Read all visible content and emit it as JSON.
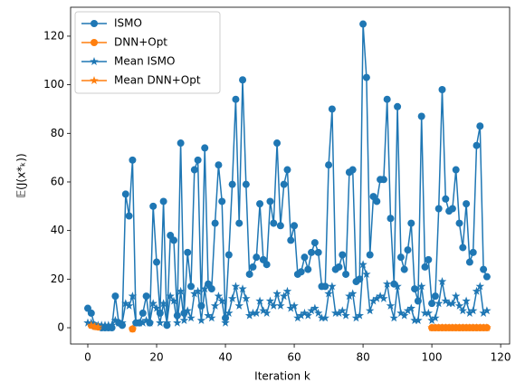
{
  "chart_data": {
    "type": "line",
    "x_label": "Iteration k",
    "y_label": "𝔼(J(x*ₖ))",
    "x": [
      0,
      1,
      2,
      3,
      4,
      5,
      6,
      7,
      8,
      9,
      10,
      11,
      12,
      13,
      14,
      15,
      16,
      17,
      18,
      19,
      20,
      21,
      22,
      23,
      24,
      25,
      26,
      27,
      28,
      29,
      30,
      31,
      32,
      33,
      34,
      35,
      36,
      37,
      38,
      39,
      40,
      41,
      42,
      43,
      44,
      45,
      46,
      47,
      48,
      49,
      50,
      51,
      52,
      53,
      54,
      55,
      56,
      57,
      58,
      59,
      60,
      61,
      62,
      63,
      64,
      65,
      66,
      67,
      68,
      69,
      70,
      71,
      72,
      73,
      74,
      75,
      76,
      77,
      78,
      79,
      80,
      81,
      82,
      83,
      84,
      85,
      86,
      87,
      88,
      89,
      90,
      91,
      92,
      93,
      94,
      95,
      96,
      97,
      98,
      99,
      100,
      101,
      102,
      103,
      104,
      105,
      106,
      107,
      108,
      109,
      110,
      111,
      112,
      113,
      114,
      115,
      116
    ],
    "series": [
      {
        "name": "ISMO",
        "color": "#1f77b4",
        "marker": "o",
        "values": [
          8,
          6,
          1,
          0.5,
          0,
          0,
          0,
          0,
          13,
          2,
          1,
          55,
          46,
          69,
          2,
          2,
          6,
          13,
          2,
          50,
          27,
          6,
          52,
          1,
          38,
          36,
          5,
          76,
          6,
          31,
          17,
          65,
          69,
          9,
          74,
          18,
          16,
          43,
          67,
          52,
          4,
          30,
          59,
          94,
          43,
          102,
          59,
          22,
          25,
          29,
          51,
          28,
          26,
          52,
          43,
          76,
          42,
          59,
          65,
          36,
          42,
          22,
          23,
          29,
          24,
          31,
          35,
          31,
          17,
          17,
          67,
          90,
          24,
          25,
          30,
          22,
          64,
          65,
          19,
          20,
          125,
          103,
          30,
          54,
          52,
          61,
          61,
          94,
          45,
          18,
          91,
          29,
          24,
          32,
          43,
          16,
          11,
          87,
          25,
          28,
          10,
          13,
          49,
          98,
          53,
          48,
          49,
          65,
          43,
          33,
          51,
          27,
          31,
          75,
          83,
          24,
          21
        ]
      },
      {
        "name": "DNN+Opt",
        "color": "#ff7f0e",
        "marker": "o",
        "values": [
          null,
          1,
          0.5,
          0.3,
          null,
          null,
          null,
          null,
          null,
          null,
          null,
          null,
          null,
          -0.5,
          null,
          null,
          null,
          null,
          null,
          null,
          null,
          null,
          null,
          null,
          null,
          null,
          null,
          null,
          null,
          null,
          null,
          null,
          null,
          null,
          null,
          null,
          null,
          null,
          null,
          null,
          null,
          null,
          null,
          null,
          null,
          null,
          null,
          null,
          null,
          null,
          null,
          null,
          null,
          null,
          null,
          null,
          null,
          null,
          null,
          null,
          null,
          null,
          null,
          null,
          null,
          null,
          null,
          null,
          null,
          null,
          null,
          null,
          null,
          null,
          null,
          null,
          null,
          null,
          null,
          null,
          null,
          null,
          null,
          null,
          null,
          null,
          null,
          null,
          null,
          null,
          null,
          null,
          null,
          null,
          null,
          null,
          null,
          null,
          null,
          null,
          0,
          0,
          0,
          0,
          0,
          0,
          0,
          0,
          0,
          0,
          0,
          0,
          0,
          0,
          0,
          0,
          0
        ]
      },
      {
        "name": "Mean ISMO",
        "color": "#1f77b4",
        "marker": "*",
        "values": [
          2,
          2,
          1,
          1,
          1,
          1,
          1,
          1,
          3,
          2,
          2,
          10,
          9,
          13,
          2,
          2,
          2,
          3,
          2,
          10,
          8,
          2,
          10,
          2,
          13,
          11,
          2,
          15,
          3,
          7,
          4,
          14,
          15,
          3,
          16,
          5,
          4,
          9,
          13,
          11,
          2,
          6,
          12,
          17,
          9,
          16,
          12,
          5,
          6,
          6,
          11,
          7,
          6,
          11,
          9,
          14,
          9,
          13,
          15,
          8,
          9,
          4,
          5,
          6,
          5,
          7,
          8,
          6,
          4,
          4,
          14,
          17,
          6,
          6,
          7,
          5,
          13,
          14,
          4,
          5,
          26,
          22,
          7,
          11,
          12,
          13,
          12,
          18,
          9,
          4,
          17,
          6,
          5,
          7,
          8,
          3,
          3,
          17,
          6,
          6,
          3,
          4,
          10,
          19,
          11,
          10,
          10,
          13,
          9,
          7,
          11,
          6,
          7,
          15,
          17,
          6,
          7
        ]
      },
      {
        "name": "Mean DNN+Opt",
        "color": "#ff7f0e",
        "marker": "*",
        "values": [
          null,
          1,
          0.5,
          0.3,
          null,
          null,
          null,
          null,
          null,
          null,
          null,
          null,
          null,
          -0.5,
          null,
          null,
          null,
          null,
          null,
          null,
          null,
          null,
          null,
          null,
          null,
          null,
          null,
          null,
          null,
          null,
          null,
          null,
          null,
          null,
          null,
          null,
          null,
          null,
          null,
          null,
          null,
          null,
          null,
          null,
          null,
          null,
          null,
          null,
          null,
          null,
          null,
          null,
          null,
          null,
          null,
          null,
          null,
          null,
          null,
          null,
          null,
          null,
          null,
          null,
          null,
          null,
          null,
          null,
          null,
          null,
          null,
          null,
          null,
          null,
          null,
          null,
          null,
          null,
          null,
          null,
          null,
          null,
          null,
          null,
          null,
          null,
          null,
          null,
          null,
          null,
          null,
          null,
          null,
          null,
          null,
          null,
          null,
          null,
          null,
          null,
          0,
          0,
          0,
          0,
          0,
          0,
          0,
          0,
          0,
          0,
          0,
          0,
          0,
          0,
          0,
          0,
          0
        ]
      }
    ],
    "xlim": [
      -5,
      122.6
    ],
    "xticks": [
      0,
      20,
      40,
      60,
      80,
      100,
      120
    ],
    "ylim": [
      -6.7,
      131.9
    ],
    "yticks": [
      0,
      20,
      40,
      60,
      80,
      100,
      120
    ],
    "legend": "upper left"
  }
}
